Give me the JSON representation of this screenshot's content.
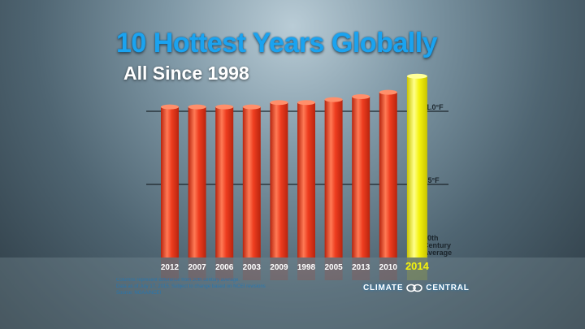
{
  "header": {
    "title": "10 Hottest Years Globally",
    "subtitle": "All Since 1998"
  },
  "chart_data": {
    "type": "bar",
    "categories": [
      "2012",
      "2007",
      "2006",
      "2003",
      "2009",
      "1998",
      "2005",
      "2013",
      "2010",
      "2014"
    ],
    "values": [
      1.03,
      1.03,
      1.03,
      1.03,
      1.06,
      1.06,
      1.08,
      1.1,
      1.13,
      1.24
    ],
    "highlight_index": 9,
    "ylim": [
      0,
      1.25
    ],
    "y_ticks": [
      {
        "value": 1.0,
        "label": "1.0°F"
      },
      {
        "value": 0.5,
        "label": ".5°F"
      },
      {
        "value": 0,
        "label": "20th Century Average"
      }
    ],
    "bar_color": "#ee3d1f",
    "highlight_color": "#f4f20d",
    "grid": true
  },
  "notes": {
    "line1": "Columns represent difference from 20th century average.",
    "line2": "Data as of July 17, 2015. Subject to change based on NCEI revisions",
    "line3": "Source: NOAA/NCEI"
  },
  "brand": {
    "left": "CLIMATE",
    "right": "CENTRAL"
  }
}
